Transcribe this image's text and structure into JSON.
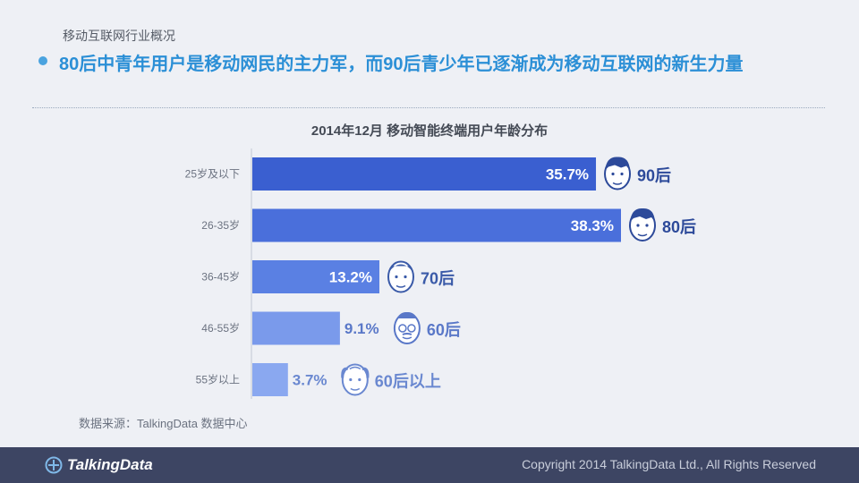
{
  "header": {
    "section_title": "移动互联网行业概况",
    "headline": "80后中青年用户是移动网民的主力军，而90后青少年已逐渐成为移动互联网的新生力量"
  },
  "chart_data": {
    "type": "bar",
    "orientation": "horizontal",
    "title": "2014年12月 移动智能终端用户年龄分布",
    "categories": [
      "25岁及以下",
      "26-35岁",
      "36-45岁",
      "46-55岁",
      "55岁以上"
    ],
    "values": [
      35.7,
      38.3,
      13.2,
      9.1,
      3.7
    ],
    "value_labels": [
      "35.7%",
      "38.3%",
      "13.2%",
      "9.1%",
      "3.7%"
    ],
    "generation_labels": [
      "90后",
      "80后",
      "70后",
      "60后",
      "60后以上"
    ],
    "bar_colors": [
      "#3a5fd0",
      "#4a6fdb",
      "#5a80e3",
      "#7a9aeb",
      "#8aa8f0"
    ],
    "label_colors": [
      "#2d4a9a",
      "#2d4a9a",
      "#3a5aa8",
      "#5a78c8",
      "#6a88d0"
    ],
    "xlim": [
      0,
      38.3
    ]
  },
  "source": "数据来源：TalkingData 数据中心",
  "footer": {
    "brand": "TalkingData",
    "copyright": "Copyright 2014 TalkingData Ltd., All Rights Reserved"
  }
}
